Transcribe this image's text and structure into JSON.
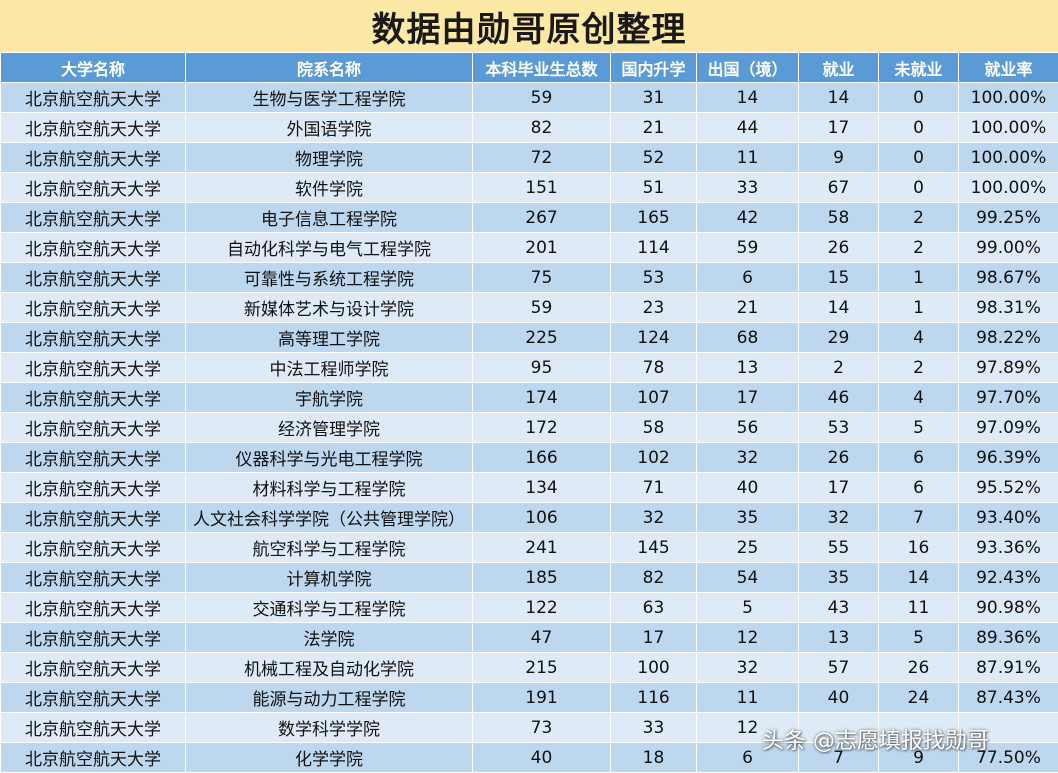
{
  "title": "数据由勋哥原创整理",
  "columns": [
    "大学名称",
    "院系名称",
    "本科毕业生总数",
    "国内升学",
    "出国（境）",
    "就业",
    "未就业",
    "就业率"
  ],
  "rows": [
    [
      "北京航空航天大学",
      "生物与医学工程学院",
      "59",
      "31",
      "14",
      "14",
      "0",
      "100.00%"
    ],
    [
      "北京航空航天大学",
      "外国语学院",
      "82",
      "21",
      "44",
      "17",
      "0",
      "100.00%"
    ],
    [
      "北京航空航天大学",
      "物理学院",
      "72",
      "52",
      "11",
      "9",
      "0",
      "100.00%"
    ],
    [
      "北京航空航天大学",
      "软件学院",
      "151",
      "51",
      "33",
      "67",
      "0",
      "100.00%"
    ],
    [
      "北京航空航天大学",
      "电子信息工程学院",
      "267",
      "165",
      "42",
      "58",
      "2",
      "99.25%"
    ],
    [
      "北京航空航天大学",
      "自动化科学与电气工程学院",
      "201",
      "114",
      "59",
      "26",
      "2",
      "99.00%"
    ],
    [
      "北京航空航天大学",
      "可靠性与系统工程学院",
      "75",
      "53",
      "6",
      "15",
      "1",
      "98.67%"
    ],
    [
      "北京航空航天大学",
      "新媒体艺术与设计学院",
      "59",
      "23",
      "21",
      "14",
      "1",
      "98.31%"
    ],
    [
      "北京航空航天大学",
      "高等理工学院",
      "225",
      "124",
      "68",
      "29",
      "4",
      "98.22%"
    ],
    [
      "北京航空航天大学",
      "中法工程师学院",
      "95",
      "78",
      "13",
      "2",
      "2",
      "97.89%"
    ],
    [
      "北京航空航天大学",
      "宇航学院",
      "174",
      "107",
      "17",
      "46",
      "4",
      "97.70%"
    ],
    [
      "北京航空航天大学",
      "经济管理学院",
      "172",
      "58",
      "56",
      "53",
      "5",
      "97.09%"
    ],
    [
      "北京航空航天大学",
      "仪器科学与光电工程学院",
      "166",
      "102",
      "32",
      "26",
      "6",
      "96.39%"
    ],
    [
      "北京航空航天大学",
      "材料科学与工程学院",
      "134",
      "71",
      "40",
      "17",
      "6",
      "95.52%"
    ],
    [
      "北京航空航天大学",
      "人文社会科学学院（公共管理学院）",
      "106",
      "32",
      "35",
      "32",
      "7",
      "93.40%"
    ],
    [
      "北京航空航天大学",
      "航空科学与工程学院",
      "241",
      "145",
      "25",
      "55",
      "16",
      "93.36%"
    ],
    [
      "北京航空航天大学",
      "计算机学院",
      "185",
      "82",
      "54",
      "35",
      "14",
      "92.43%"
    ],
    [
      "北京航空航天大学",
      "交通科学与工程学院",
      "122",
      "63",
      "5",
      "43",
      "11",
      "90.98%"
    ],
    [
      "北京航空航天大学",
      "法学院",
      "47",
      "17",
      "12",
      "13",
      "5",
      "89.36%"
    ],
    [
      "北京航空航天大学",
      "机械工程及自动化学院",
      "215",
      "100",
      "32",
      "57",
      "26",
      "87.91%"
    ],
    [
      "北京航空航天大学",
      "能源与动力工程学院",
      "191",
      "116",
      "11",
      "40",
      "24",
      "87.43%"
    ],
    [
      "北京航空航天大学",
      "数学科学学院",
      "73",
      "33",
      "12",
      "",
      "",
      ""
    ],
    [
      "北京航空航天大学",
      "化学学院",
      "40",
      "18",
      "6",
      "7",
      "9",
      "77.50%"
    ]
  ],
  "watermark": "头条 @志愿填报找勋哥",
  "colors": {
    "title_bg": "#fde9a6",
    "header_bg": "#5b9bd5",
    "row_odd": "#bdd7ee",
    "row_even": "#deebf7"
  }
}
